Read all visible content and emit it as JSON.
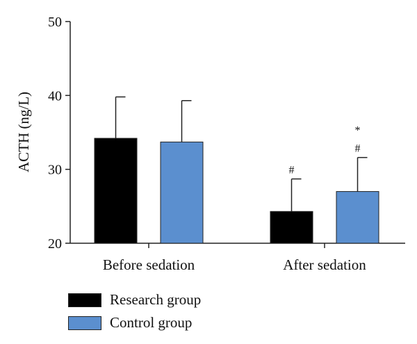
{
  "chart_data": {
    "type": "bar",
    "title": "",
    "xlabel": "",
    "ylabel": "ACTH (ng/L)",
    "ylim": [
      20,
      50
    ],
    "yticks": [
      "20",
      "30",
      "40",
      "50"
    ],
    "categories": [
      "Before sedation",
      "After sedation"
    ],
    "series": [
      {
        "name": "Research group",
        "color": "#000000",
        "values": [
          34.2,
          24.3
        ],
        "error": [
          5.6,
          4.4
        ]
      },
      {
        "name": "Control group",
        "color": "#5b8fcf",
        "values": [
          33.7,
          27.0
        ],
        "error": [
          5.6,
          4.6
        ]
      }
    ],
    "annotations": [
      {
        "category": "After sedation",
        "series": "Research group",
        "text": "#"
      },
      {
        "category": "After sedation",
        "series": "Control group",
        "text": "#"
      },
      {
        "category": "After sedation",
        "series": "Control group",
        "text": "*"
      }
    ],
    "legend_position": "bottom-left",
    "grid": false
  }
}
